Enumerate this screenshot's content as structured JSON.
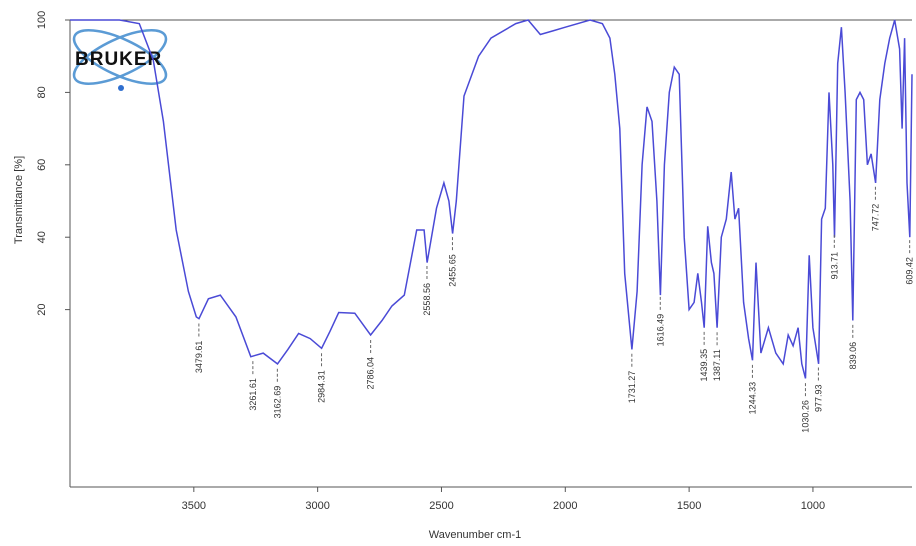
{
  "logo": "BRUKER",
  "chart_data": {
    "type": "line",
    "xlabel": "Wavenumber cm-1",
    "ylabel": "Transmittance [%]",
    "xlim": [
      4000,
      600
    ],
    "ylim": [
      -29,
      100
    ],
    "xticks": [
      3500,
      3000,
      2500,
      2000,
      1500,
      1000
    ],
    "yticks": [
      20,
      40,
      60,
      80,
      100
    ],
    "color": "#4a4ad6",
    "x": [
      4000,
      3800,
      3720,
      3664,
      3623,
      3571,
      3522,
      3490,
      3479,
      3441,
      3393,
      3330,
      3270,
      3220,
      3162,
      3120,
      3077,
      3030,
      2984,
      2950,
      2915,
      2850,
      2786,
      2740,
      2700,
      2650,
      2600,
      2570,
      2558,
      2520,
      2490,
      2470,
      2455,
      2440,
      2409,
      2350,
      2300,
      2200,
      2150,
      2101,
      2050,
      2000,
      1900,
      1850,
      1820,
      1800,
      1780,
      1760,
      1731,
      1710,
      1690,
      1670,
      1650,
      1630,
      1616,
      1600,
      1580,
      1560,
      1540,
      1520,
      1500,
      1480,
      1465,
      1450,
      1439,
      1425,
      1410,
      1400,
      1387,
      1370,
      1350,
      1330,
      1315,
      1300,
      1280,
      1260,
      1244,
      1230,
      1210,
      1180,
      1150,
      1120,
      1100,
      1080,
      1060,
      1045,
      1030,
      1015,
      1000,
      977,
      965,
      950,
      935,
      920,
      913,
      900,
      885,
      870,
      850,
      839,
      825,
      810,
      795,
      780,
      765,
      747,
      730,
      710,
      690,
      670,
      650,
      640,
      630,
      620,
      609,
      600
    ],
    "values": [
      100,
      100,
      99,
      89,
      72,
      42,
      25,
      18,
      17.5,
      23,
      24,
      18,
      7,
      8,
      5,
      9,
      13.4,
      12,
      9.3,
      14,
      19.2,
      19,
      13,
      17,
      21,
      24,
      42,
      42,
      33,
      48,
      55,
      50,
      41,
      50,
      79,
      90,
      95,
      99,
      100,
      96,
      97,
      98,
      100,
      99,
      95,
      85,
      70,
      30,
      9,
      25,
      60,
      76,
      72,
      50,
      24,
      60,
      80,
      87,
      85,
      40,
      20,
      22,
      30,
      22,
      15,
      43,
      33,
      30,
      15,
      40,
      45,
      58,
      45,
      48,
      22,
      12,
      6,
      33,
      8,
      15,
      8,
      5,
      13,
      10,
      15,
      5,
      1,
      35,
      15,
      5,
      45,
      48,
      80,
      60,
      40,
      88,
      98,
      80,
      50,
      17,
      78,
      80,
      78,
      60,
      63,
      55,
      78,
      88,
      95,
      100,
      92,
      70,
      95,
      55,
      40,
      85
    ],
    "peaks": [
      3479.61,
      3261.61,
      3162.69,
      2984.31,
      2786.04,
      2558.56,
      2455.65,
      1731.27,
      1616.49,
      1439.35,
      1387.11,
      1244.33,
      1030.26,
      977.93,
      913.71,
      839.06,
      747.72,
      609.42
    ]
  }
}
